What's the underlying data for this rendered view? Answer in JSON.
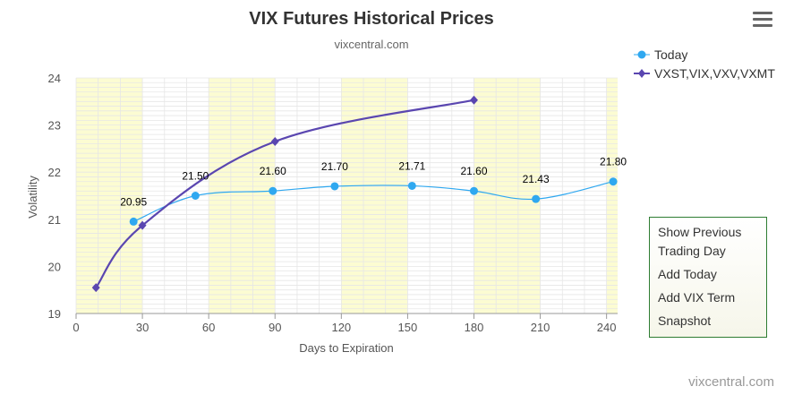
{
  "menu": {
    "icon": "hamburger-icon"
  },
  "side_menu": {
    "items": [
      "Show Previous Trading Day",
      "Add Today",
      "Add VIX Term",
      "Snapshot"
    ]
  },
  "credit": "vixcentral.com",
  "colors": {
    "today": "#2fa8f0",
    "term": "#5a46b0",
    "band": "#fcfcd2",
    "grid": "#e6e6e6"
  },
  "chart_data": {
    "type": "line",
    "title": "VIX Futures Historical Prices",
    "subtitle": "vixcentral.com",
    "xlabel": "Days to Expiration",
    "ylabel": "Volatility",
    "xlim": [
      0,
      245
    ],
    "ylim": [
      19,
      24
    ],
    "x_ticks": [
      0,
      30,
      60,
      90,
      120,
      150,
      180,
      210,
      240
    ],
    "y_ticks": [
      19,
      20,
      21,
      22,
      23,
      24
    ],
    "grid": true,
    "legend_position": "top-right",
    "series": [
      {
        "name": "Today",
        "marker": "circle",
        "points": [
          {
            "x": 26,
            "y": 20.95,
            "label": "20.95"
          },
          {
            "x": 54,
            "y": 21.5,
            "label": "21.50"
          },
          {
            "x": 89,
            "y": 21.6,
            "label": "21.60"
          },
          {
            "x": 117,
            "y": 21.7,
            "label": "21.70"
          },
          {
            "x": 152,
            "y": 21.71,
            "label": "21.71"
          },
          {
            "x": 180,
            "y": 21.6,
            "label": "21.60"
          },
          {
            "x": 208,
            "y": 21.43,
            "label": "21.43"
          },
          {
            "x": 243,
            "y": 21.8,
            "label": "21.80"
          }
        ]
      },
      {
        "name": "VXST,VIX,VXV,VXMT",
        "marker": "diamond",
        "points": [
          {
            "x": 9,
            "y": 19.55
          },
          {
            "x": 30,
            "y": 20.87
          },
          {
            "x": 90,
            "y": 22.65
          },
          {
            "x": 180,
            "y": 23.53
          }
        ]
      }
    ]
  }
}
